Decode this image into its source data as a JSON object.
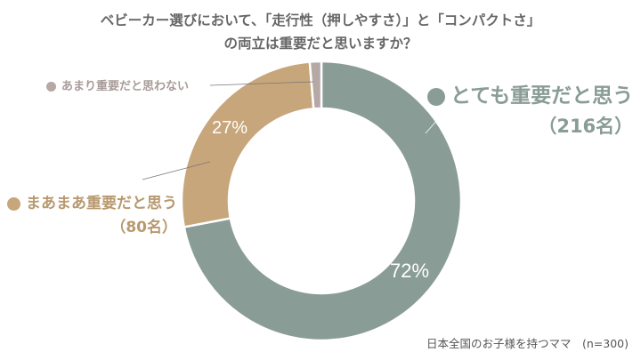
{
  "chart_data": {
    "type": "pie",
    "donut": true,
    "title_lines": [
      "ベビーカー選びにおいて、「走行性（押しやすさ）」と「コンパクトさ」",
      "の両立は重要だと思いますか？"
    ],
    "slices": [
      {
        "label": "とても重要だと思う",
        "count_label": "（216名）",
        "value": 216,
        "percent_label": "72%",
        "color": "#8a9c96"
      },
      {
        "label": "まあまあ重要だと思う",
        "count_label": "（80名）",
        "value": 80,
        "percent_label": "27%",
        "color": "#c7a67b"
      },
      {
        "label": "あまり重要だと思わない",
        "value": 4,
        "color": "#b5a8a5"
      }
    ],
    "note": "日本全国のお子様を持つママ　(n=300)"
  }
}
